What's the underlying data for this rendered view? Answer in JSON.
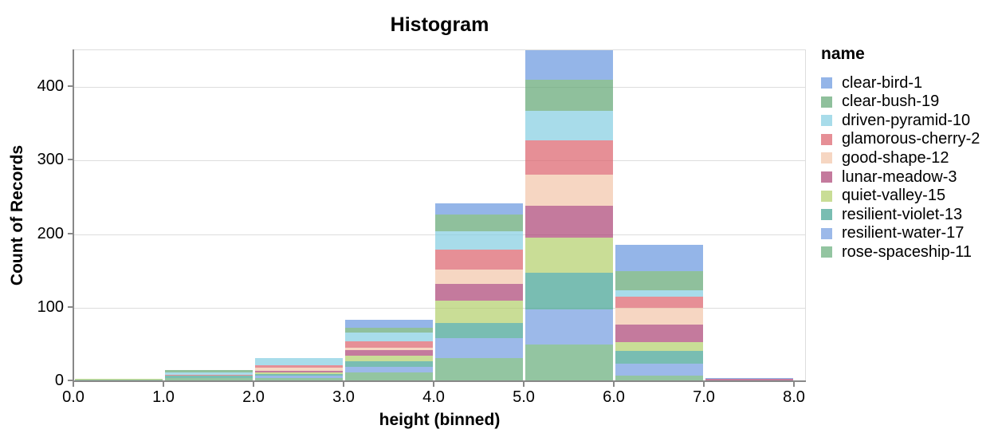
{
  "chart_data": {
    "type": "bar",
    "stacked": true,
    "stack_order": "first-series-on-top",
    "title": "Histogram",
    "xlabel": "height (binned)",
    "ylabel": "Count of Records",
    "legend_title": "name",
    "legend_position": "right",
    "grid": true,
    "ylim": [
      0,
      450
    ],
    "y_ticks": [
      0,
      100,
      200,
      300,
      400
    ],
    "x_ticks": [
      "0.0",
      "1.0",
      "2.0",
      "3.0",
      "4.0",
      "5.0",
      "6.0",
      "7.0",
      "8.0"
    ],
    "bin_edges": [
      0,
      1,
      2,
      3,
      4,
      5,
      6,
      7,
      8
    ],
    "bin_labels": [
      "0-1",
      "1-2",
      "2-3",
      "3-4",
      "4-5",
      "5-6",
      "6-7",
      "7-8"
    ],
    "bin_totals": [
      2,
      14,
      30,
      82,
      241,
      449,
      184,
      3
    ],
    "axis_color": "#888888",
    "grid_color": "#dddddd",
    "text_color": "#000000",
    "series": [
      {
        "name": "clear-bird-1",
        "color": "rgba(102,149,222,0.7)",
        "values": [
          0,
          0,
          0,
          10,
          15,
          40,
          35,
          1
        ]
      },
      {
        "name": "clear-bush-19",
        "color": "rgba(96,165,114,0.7)",
        "values": [
          0,
          3,
          0,
          7,
          23,
          42,
          26,
          0
        ]
      },
      {
        "name": "driven-pyramid-10",
        "color": "rgba(131,205,225,0.7)",
        "values": [
          0,
          3,
          9,
          12,
          25,
          41,
          9,
          0
        ]
      },
      {
        "name": "glamorous-cherry-2",
        "color": "rgba(219,96,106,0.7)",
        "values": [
          0,
          2,
          4,
          8,
          27,
          46,
          15,
          0
        ]
      },
      {
        "name": "good-shape-12",
        "color": "rgba(242,196,168,0.7)",
        "values": [
          0,
          0,
          4,
          4,
          20,
          43,
          23,
          0
        ]
      },
      {
        "name": "lunar-meadow-3",
        "color": "rgba(171,65,116,0.7)",
        "values": [
          0,
          0,
          2,
          7,
          23,
          43,
          24,
          2
        ]
      },
      {
        "name": "quiet-valley-15",
        "color": "rgba(178,206,105,0.7)",
        "values": [
          1,
          0,
          2,
          8,
          30,
          48,
          12,
          0
        ]
      },
      {
        "name": "resilient-violet-13",
        "color": "rgba(64,161,146,0.7)",
        "values": [
          0,
          3,
          3,
          8,
          20,
          49,
          17,
          0
        ]
      },
      {
        "name": "resilient-water-17",
        "color": "rgba(114,155,224,0.7)",
        "values": [
          0,
          0,
          3,
          7,
          28,
          48,
          17,
          0
        ]
      },
      {
        "name": "rose-spaceship-11",
        "color": "rgba(101,172,121,0.7)",
        "values": [
          1,
          3,
          3,
          11,
          30,
          49,
          6,
          0
        ]
      }
    ]
  }
}
